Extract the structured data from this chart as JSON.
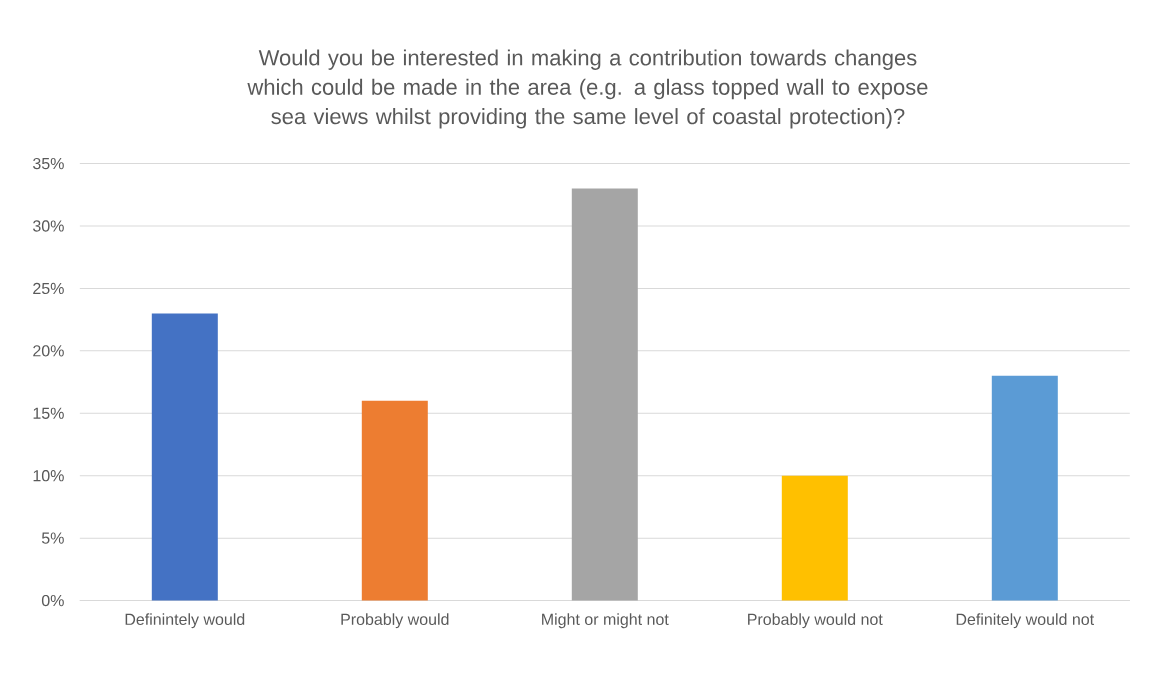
{
  "chart_data": {
    "type": "bar",
    "title": "Would you be interested in making a contribution towards changes which could be made in the area (e.g. a glass topped wall to expose sea views whilst providing the same level of coastal protection)?",
    "categories": [
      "Definintely would",
      "Probably would",
      "Might or might not",
      "Probably would not",
      "Definitely would not"
    ],
    "values": [
      23,
      16,
      33,
      10,
      18
    ],
    "colors": [
      "#4472c4",
      "#ed7d31",
      "#a5a5a5",
      "#ffc000",
      "#5b9bd5"
    ],
    "ylim": [
      0,
      35
    ],
    "yticks": [
      {
        "value": 0,
        "label": "0%"
      },
      {
        "value": 5,
        "label": "5%"
      },
      {
        "value": 10,
        "label": "10%"
      },
      {
        "value": 15,
        "label": "15%"
      },
      {
        "value": 20,
        "label": "20%"
      },
      {
        "value": 25,
        "label": "25%"
      },
      {
        "value": 30,
        "label": "30%"
      },
      {
        "value": 35,
        "label": "35%"
      }
    ],
    "grid": "y"
  }
}
